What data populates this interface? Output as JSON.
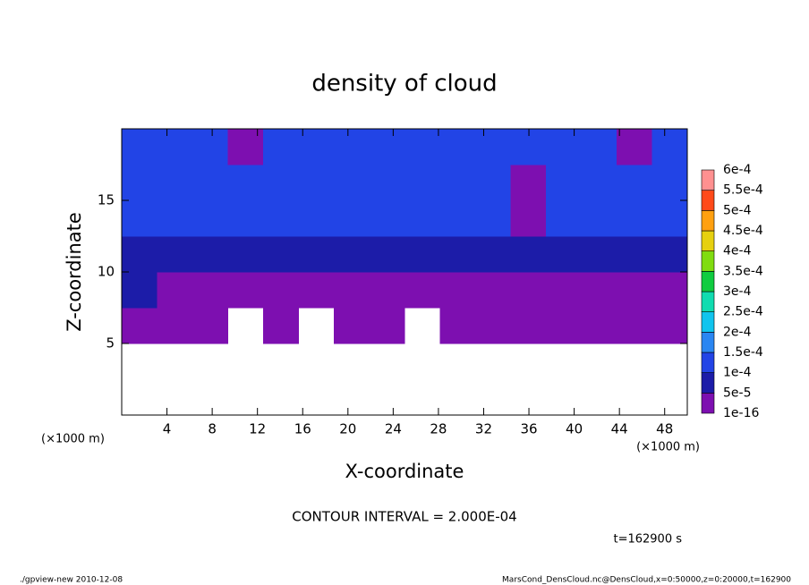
{
  "chart_data": {
    "type": "contour",
    "title": "density of cloud",
    "xlabel": "X-coordinate",
    "ylabel": "Z-coordinate",
    "xunit": "(×1000 m)",
    "yunit": "(×1000 m)",
    "xlim": [
      0,
      50
    ],
    "xticks": [
      4,
      8,
      12,
      16,
      20,
      24,
      28,
      32,
      36,
      40,
      44,
      48
    ],
    "ylim": [
      0,
      20
    ],
    "yticks": [
      5,
      10,
      15
    ],
    "x": [
      0,
      3.125,
      6.25,
      9.375,
      12.5,
      15.625,
      18.75,
      21.875,
      25,
      28.125,
      31.25,
      34.375,
      37.5,
      40.625,
      43.75,
      46.875,
      50
    ],
    "z": [
      0,
      2.5,
      5,
      7.5,
      10,
      12.5,
      15,
      17.5,
      20
    ],
    "values": [
      [
        null,
        null,
        null,
        null,
        null,
        null,
        null,
        null,
        null,
        null,
        null,
        null,
        null,
        null,
        null,
        null
      ],
      [
        null,
        null,
        null,
        null,
        null,
        null,
        null,
        null,
        null,
        null,
        null,
        null,
        null,
        null,
        null,
        null
      ],
      [
        2e-05,
        2e-05,
        2e-05,
        null,
        2e-05,
        null,
        2e-05,
        2e-05,
        null,
        2e-05,
        2e-05,
        2e-05,
        2e-05,
        2e-05,
        2e-05,
        2e-05
      ],
      [
        6e-05,
        2e-05,
        2e-05,
        2e-05,
        2e-05,
        2e-05,
        2e-05,
        2e-05,
        2e-05,
        2e-05,
        2e-05,
        2e-05,
        2e-05,
        2e-05,
        2e-05,
        2e-05
      ],
      [
        9e-05,
        9e-05,
        9e-05,
        9e-05,
        9e-05,
        9e-05,
        9e-05,
        9e-05,
        9e-05,
        9e-05,
        9e-05,
        6e-05,
        9e-05,
        9e-05,
        9e-05,
        9e-05
      ],
      [
        0.00011,
        0.00011,
        0.00011,
        0.00011,
        0.00011,
        0.00011,
        0.00011,
        0.00011,
        0.00011,
        0.00011,
        0.00011,
        2e-05,
        0.00011,
        0.00011,
        0.00011,
        0.00011
      ],
      [
        0.00012,
        0.00012,
        0.00012,
        0.00012,
        0.00012,
        0.00012,
        0.00012,
        0.00012,
        0.00012,
        0.00012,
        0.00012,
        2e-05,
        0.00012,
        0.00012,
        0.00012,
        0.00012
      ],
      [
        0.0001,
        0.0001,
        0.0001,
        2e-05,
        0.0001,
        0.0001,
        0.0001,
        0.0001,
        0.0001,
        0.0001,
        0.0001,
        0.0001,
        0.0001,
        0.0001,
        2e-05,
        0.0001
      ]
    ],
    "levels": [
      {
        "value": 1e-16,
        "label": "1e-16"
      },
      {
        "value": 5e-05,
        "label": "5e-5"
      },
      {
        "value": 0.0001,
        "label": "1e-4"
      },
      {
        "value": 0.00015,
        "label": "1.5e-4"
      },
      {
        "value": 0.0002,
        "label": "2e-4"
      },
      {
        "value": 0.00025,
        "label": "2.5e-4"
      },
      {
        "value": 0.0003,
        "label": "3e-4"
      },
      {
        "value": 0.00035,
        "label": "3.5e-4"
      },
      {
        "value": 0.0004,
        "label": "4e-4"
      },
      {
        "value": 0.00045,
        "label": "4.5e-4"
      },
      {
        "value": 0.0005,
        "label": "5e-4"
      },
      {
        "value": 0.00055,
        "label": "5.5e-4"
      },
      {
        "value": 0.0006,
        "label": "6e-4"
      }
    ],
    "colors": [
      "#7d0fb0",
      "#1c1ca8",
      "#2244e6",
      "#2a86f2",
      "#10c4ee",
      "#10dcb0",
      "#10cc40",
      "#80dc10",
      "#e6d010",
      "#ffa010",
      "#ff4a1a",
      "#ff9090"
    ],
    "contour_interval": "CONTOUR INTERVAL = 2.000E-04",
    "time_label": "t=162900 s",
    "footer_left": "./gpview-new  2010-12-08",
    "footer_right": "MarsCond_DensCloud.nc@DensCloud,x=0:50000,z=0:20000,t=162900"
  }
}
